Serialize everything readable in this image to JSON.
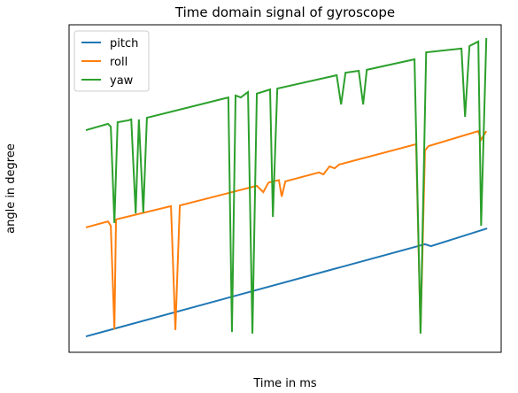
{
  "chart_data": {
    "type": "line",
    "title": "Time domain signal of gyroscope",
    "xlabel": "Time in ms",
    "ylabel": "angle in degree",
    "xlim": [
      -4.2,
      103.5
    ],
    "ylim": [
      0,
      100
    ],
    "legend": "upper left",
    "series": [
      {
        "name": "pitch",
        "color": "#1f77b4",
        "x": [
          0,
          84.5,
          86,
          100
        ],
        "values": [
          3.6,
          32.6,
          32.0,
          37.6
        ]
      },
      {
        "name": "roll",
        "color": "#ff7f0e",
        "x": [
          0,
          5.5,
          6.2,
          7.1,
          7.5,
          21.2,
          22.3,
          23.4,
          42.6,
          44.2,
          45.5,
          48.1,
          48.8,
          49.7,
          58.1,
          59.2,
          60.7,
          62.0,
          63.1,
          82.3,
          83.4,
          84.5,
          85.4,
          97.8,
          98.5,
          99.8
        ],
        "values": [
          37.9,
          39.8,
          38.4,
          5.8,
          40.4,
          44.6,
          5.6,
          44.8,
          51,
          49,
          52,
          52.8,
          47.6,
          52.4,
          55.2,
          54.6,
          57.1,
          56.5,
          57.7,
          64.1,
          5,
          62.1,
          63.5,
          68.2,
          65.5,
          68.2
        ]
      },
      {
        "name": "yaw",
        "color": "#2ca02c",
        "x": [
          0,
          5.5,
          6.2,
          7.1,
          7.9,
          10.6,
          11.3,
          12.4,
          13.2,
          14.3,
          15.2,
          35.5,
          36.4,
          37.3,
          38.6,
          40.4,
          41.5,
          42.6,
          45.9,
          46.6,
          47.7,
          62.5,
          63.6,
          64.7,
          68,
          69.1,
          70,
          81.9,
          83.4,
          84.8,
          93.6,
          94.5,
          95.6,
          97.8,
          98.5,
          99.8
        ],
        "values": [
          68.5,
          70.5,
          69.6,
          39.3,
          71,
          71.6,
          71.9,
          42.3,
          71.9,
          42.6,
          72.4,
          78.8,
          5,
          79.4,
          78.8,
          80.5,
          4.5,
          80,
          81.3,
          41.2,
          81.6,
          85.8,
          76.6,
          86.6,
          87.2,
          76.6,
          87.5,
          90.8,
          4.5,
          93,
          94.2,
          72.7,
          95,
          96.4,
          38.4,
          97.5
        ]
      }
    ]
  }
}
